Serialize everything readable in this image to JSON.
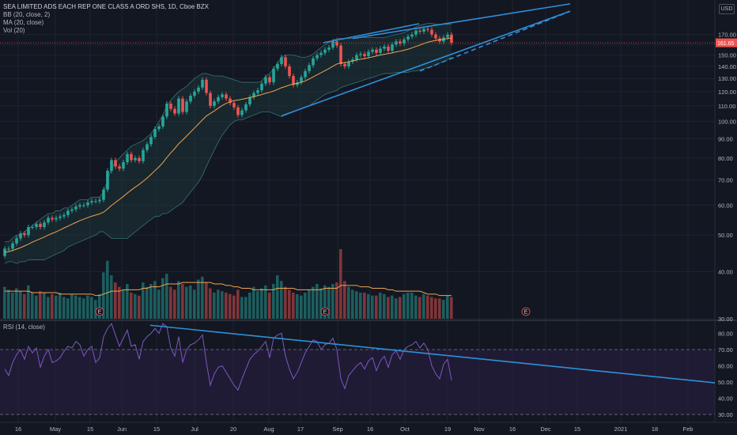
{
  "header": {
    "symbol": "SEA LIMITED ADS EACH REP ONE CLASS A ORD SHS, 1D, Cboe BZX",
    "bb": "BB (20, close, 2)",
    "ma": "MA (20, close)",
    "vol": "Vol (20)",
    "currency": "USD"
  },
  "rsi_legend": "RSI (14, close)",
  "last_price_label": "161.65",
  "earnings_marker": "E",
  "colors": {
    "background": "#131722",
    "up": "#26a69a",
    "down": "#ef5350",
    "trendline": "#2f8fd8",
    "bb_fill": "#1f3a3f",
    "ma": "#f0a44c",
    "rsi_line": "#7e57c2",
    "rsi_band": "#2a1f44"
  },
  "chart_data": [
    {
      "type": "candlestick",
      "title": "SEA LIMITED ADS EACH REP ONE CLASS A ORD SHS, 1D, Cboe BZX",
      "ylabel": "USD",
      "yscale": "log",
      "ylim": [
        30,
        200
      ],
      "y_ticks": [
        "170.00",
        "160.00",
        "150.00",
        "140.00",
        "130.00",
        "120.00",
        "110.00",
        "100.00",
        "90.00",
        "80.00",
        "70.00",
        "60.00",
        "50.00",
        "40.00",
        "30.00"
      ],
      "x_ticks": [
        "16",
        "May",
        "15",
        "Jun",
        "15",
        "Jul",
        "20",
        "Aug",
        "17",
        "Sep",
        "16",
        "Oct",
        "19",
        "Nov",
        "16",
        "Dec",
        "15",
        "2021",
        "18",
        "Feb"
      ],
      "start_date": "2020-04-13",
      "last_price": 161.65,
      "close": [
        46.0,
        46.0,
        47.5,
        49.0,
        50.5,
        50.0,
        52.5,
        52.5,
        53.5,
        52.5,
        54.0,
        55.5,
        55.0,
        55.5,
        56.0,
        56.5,
        58.0,
        58.5,
        59.5,
        60.0,
        60.0,
        61.0,
        61.5,
        61.5,
        62.0,
        66.0,
        74.0,
        79.0,
        76.0,
        75.0,
        78.0,
        82.0,
        79.0,
        80.0,
        78.5,
        84.0,
        87.0,
        91.0,
        95.5,
        97.0,
        103.0,
        111.5,
        108.0,
        105.0,
        115.0,
        106.0,
        113.0,
        117.0,
        120.0,
        123.0,
        129.0,
        119.0,
        110.0,
        113.0,
        116.0,
        118.0,
        115.0,
        112.0,
        109.0,
        104.0,
        107.0,
        111.0,
        116.0,
        119.0,
        121.0,
        126.0,
        131.0,
        127.0,
        138.0,
        142.0,
        148.0,
        140.0,
        132.0,
        125.0,
        127.0,
        131.0,
        136.0,
        141.0,
        147.0,
        150.0,
        152.0,
        155.0,
        157.0,
        163.0,
        159.0,
        142.0,
        140.0,
        144.0,
        146.0,
        150.0,
        151.0,
        149.0,
        153.0,
        155.0,
        152.0,
        156.0,
        158.0,
        154.0,
        160.0,
        163.0,
        161.0,
        165.0,
        168.0,
        170.0,
        174.0,
        173.0,
        176.0,
        175.0,
        170.0,
        166.0,
        163.0,
        167.0,
        170.0,
        161.65
      ],
      "open": [
        44.0,
        46.0,
        46.0,
        47.5,
        49.0,
        50.5,
        50.0,
        52.5,
        52.5,
        53.5,
        52.5,
        54.0,
        55.5,
        55.0,
        55.5,
        56.0,
        56.5,
        58.0,
        58.5,
        59.5,
        60.0,
        60.0,
        61.0,
        61.5,
        61.5,
        62.0,
        66.0,
        74.0,
        79.0,
        76.0,
        75.0,
        78.0,
        82.0,
        79.0,
        80.0,
        78.5,
        84.0,
        87.0,
        91.0,
        95.5,
        97.0,
        103.0,
        111.5,
        108.0,
        105.0,
        115.0,
        106.0,
        113.0,
        117.0,
        120.0,
        123.0,
        129.0,
        119.0,
        110.0,
        113.0,
        116.0,
        118.0,
        115.0,
        112.0,
        109.0,
        104.0,
        107.0,
        111.0,
        116.0,
        119.0,
        121.0,
        126.0,
        131.0,
        127.0,
        138.0,
        142.0,
        148.0,
        140.0,
        132.0,
        125.0,
        127.0,
        131.0,
        136.0,
        141.0,
        147.0,
        150.0,
        152.0,
        155.0,
        157.0,
        163.0,
        159.0,
        142.0,
        140.0,
        144.0,
        146.0,
        150.0,
        151.0,
        149.0,
        153.0,
        155.0,
        152.0,
        156.0,
        158.0,
        154.0,
        160.0,
        163.0,
        161.0,
        165.0,
        168.0,
        170.0,
        174.0,
        173.0,
        176.0,
        175.0,
        170.0,
        166.0,
        163.0,
        167.0,
        170.0
      ],
      "ma20": [
        45.0,
        45.2,
        45.5,
        45.9,
        46.3,
        46.8,
        47.3,
        47.9,
        48.4,
        48.9,
        49.4,
        50.0,
        50.5,
        51.0,
        51.6,
        52.2,
        52.8,
        53.4,
        54.0,
        54.6,
        55.1,
        55.6,
        56.1,
        56.5,
        56.9,
        57.5,
        58.6,
        59.9,
        61.0,
        62.1,
        63.3,
        64.6,
        65.8,
        67.0,
        68.1,
        69.4,
        70.8,
        72.4,
        74.1,
        75.8,
        77.8,
        80.3,
        82.6,
        84.8,
        87.3,
        89.3,
        91.5,
        93.8,
        96.1,
        98.5,
        101.0,
        103.4,
        105.0,
        106.7,
        108.5,
        110.2,
        111.7,
        112.7,
        113.6,
        114.0,
        114.5,
        115.1,
        115.7,
        116.4,
        117.1,
        117.9,
        118.8,
        119.5,
        120.4,
        121.6,
        122.9,
        123.8,
        124.9,
        125.6,
        126.2,
        127.0,
        128.1,
        129.6,
        131.3,
        133.0,
        134.7,
        136.4,
        138.1,
        140.1,
        142.0,
        142.8,
        143.2,
        143.9,
        144.6,
        145.6,
        146.3,
        146.7,
        147.6,
        148.3,
        149.2,
        150.0,
        150.7,
        151.3,
        152.0,
        152.9,
        153.6,
        154.5,
        155.4,
        156.7,
        158.1,
        159.4,
        160.9,
        162.3,
        163.2,
        164.0,
        164.6,
        165.2,
        166.0,
        166.4
      ],
      "bb_upper": [
        48,
        48,
        49,
        50,
        50,
        51,
        52,
        53,
        54,
        55,
        56,
        57,
        57,
        58,
        58,
        59,
        59,
        60,
        61,
        62,
        62,
        62,
        63,
        63,
        63,
        65,
        70,
        75,
        78,
        80,
        82,
        84,
        86,
        87,
        88,
        89,
        91,
        93,
        96,
        100,
        104,
        110,
        114,
        117,
        120,
        122,
        124,
        127,
        130,
        132,
        134,
        134,
        133,
        132,
        132,
        132,
        131,
        130,
        129,
        128,
        127,
        127,
        127,
        127,
        127,
        128,
        132,
        134,
        138,
        143,
        148,
        150,
        150,
        150,
        149,
        148,
        148,
        149,
        151,
        154,
        157,
        160,
        162,
        164,
        166,
        166,
        166,
        166,
        166,
        166,
        167,
        167,
        167,
        167,
        167,
        167,
        167,
        168,
        169,
        170,
        171,
        172,
        174,
        176,
        178,
        180,
        181,
        182,
        182,
        181,
        181,
        181,
        181,
        181
      ],
      "bb_lower": [
        42,
        42.5,
        42.5,
        42,
        42.5,
        42.5,
        43,
        43,
        43,
        43,
        43,
        43.5,
        44,
        44.5,
        45,
        45.5,
        46.5,
        47,
        47.5,
        48,
        48.5,
        49,
        49.5,
        50,
        51,
        51,
        50,
        49,
        49,
        49,
        49,
        49,
        50,
        51,
        52,
        53,
        54,
        55,
        56,
        56,
        57,
        57,
        58,
        59,
        60,
        61,
        63,
        65,
        67,
        69,
        72,
        76,
        80,
        84,
        88,
        92,
        95,
        98,
        100,
        101,
        101,
        102,
        103,
        104,
        105,
        106,
        106,
        106,
        105,
        104,
        103,
        104,
        105,
        106,
        107,
        108,
        109,
        110,
        112,
        114,
        116,
        118,
        119,
        120,
        121,
        123,
        124,
        125,
        126,
        127,
        128,
        129,
        130,
        131,
        132,
        133,
        134,
        134,
        134,
        135,
        135,
        135,
        135,
        136,
        136,
        137,
        138,
        139,
        140,
        141,
        143,
        144,
        146,
        148
      ],
      "volume": [
        22,
        20,
        18,
        21,
        19,
        17,
        23,
        18,
        16,
        19,
        18,
        15,
        17,
        16,
        18,
        15,
        14,
        17,
        16,
        15,
        14,
        16,
        15,
        13,
        17,
        32,
        40,
        30,
        25,
        22,
        20,
        24,
        18,
        17,
        16,
        25,
        22,
        24,
        26,
        20,
        28,
        31,
        22,
        20,
        26,
        24,
        22,
        23,
        20,
        27,
        29,
        25,
        21,
        18,
        20,
        19,
        18,
        17,
        16,
        20,
        15,
        15,
        18,
        22,
        19,
        21,
        23,
        18,
        24,
        30,
        26,
        22,
        20,
        18,
        17,
        16,
        18,
        20,
        22,
        24,
        21,
        23,
        22,
        24,
        25,
        48,
        26,
        22,
        20,
        19,
        18,
        18,
        17,
        16,
        16,
        18,
        17,
        15,
        16,
        14,
        15,
        17,
        18,
        18,
        16,
        15,
        17,
        16,
        15,
        14,
        14,
        13,
        16,
        15
      ],
      "volume_ma20": [
        19,
        19,
        19,
        19,
        19,
        19,
        19,
        18,
        18,
        18,
        18,
        18,
        18,
        18,
        17,
        17,
        17,
        17,
        17,
        17,
        17,
        17,
        17,
        16,
        16,
        17,
        18,
        19,
        19,
        19,
        20,
        20,
        20,
        20,
        20,
        21,
        21,
        22,
        22,
        22,
        23,
        24,
        24,
        24,
        24,
        25,
        25,
        25,
        25,
        25,
        25,
        25,
        25,
        24,
        24,
        24,
        23,
        23,
        22,
        22,
        21,
        21,
        21,
        20,
        20,
        20,
        20,
        20,
        20,
        21,
        21,
        21,
        21,
        21,
        20,
        20,
        20,
        20,
        20,
        20,
        20,
        21,
        21,
        21,
        21,
        23,
        23,
        23,
        23,
        23,
        22,
        22,
        22,
        21,
        21,
        21,
        21,
        20,
        20,
        19,
        19,
        19,
        19,
        19,
        19,
        19,
        18,
        17,
        17,
        17,
        16,
        16,
        16,
        16
      ],
      "earnings_markers_index": [
        24,
        81,
        143
      ],
      "trendlines_price": [
        {
          "from": [
            70,
            103.5
          ],
          "to": [
            143,
            196
          ]
        },
        {
          "from": [
            88,
            166
          ],
          "to": [
            143,
            205
          ]
        },
        {
          "from": [
            105,
            136
          ],
          "to": [
            143,
            196
          ]
        }
      ]
    },
    {
      "type": "line",
      "title": "RSI (14, close)",
      "ylim": [
        25,
        85
      ],
      "y_ticks": [
        "80.00",
        "70.00",
        "60.00",
        "50.00",
        "40.00",
        "30.00"
      ],
      "bands": [
        70,
        30
      ],
      "values": [
        58,
        54,
        62,
        67,
        70,
        64,
        72,
        68,
        71,
        59,
        66,
        70,
        62,
        63,
        65,
        69,
        72,
        71,
        75,
        73,
        66,
        70,
        72,
        62,
        65,
        78,
        83,
        86,
        79,
        72,
        77,
        82,
        72,
        73,
        64,
        75,
        78,
        80,
        83,
        80,
        86,
        84,
        71,
        66,
        78,
        62,
        70,
        73,
        74,
        76,
        79,
        62,
        48,
        55,
        59,
        60,
        56,
        52,
        48,
        45,
        52,
        58,
        64,
        67,
        69,
        72,
        75,
        65,
        77,
        79,
        80,
        66,
        58,
        52,
        56,
        62,
        68,
        72,
        76,
        75,
        70,
        73,
        74,
        77,
        70,
        52,
        46,
        54,
        57,
        60,
        62,
        58,
        63,
        65,
        57,
        63,
        66,
        59,
        67,
        69,
        64,
        70,
        72,
        73,
        75,
        71,
        74,
        70,
        60,
        55,
        52,
        61,
        64,
        51
      ],
      "trendline": {
        "from": [
          44,
          85
        ],
        "to": [
          264,
          49.5
        ]
      }
    }
  ]
}
